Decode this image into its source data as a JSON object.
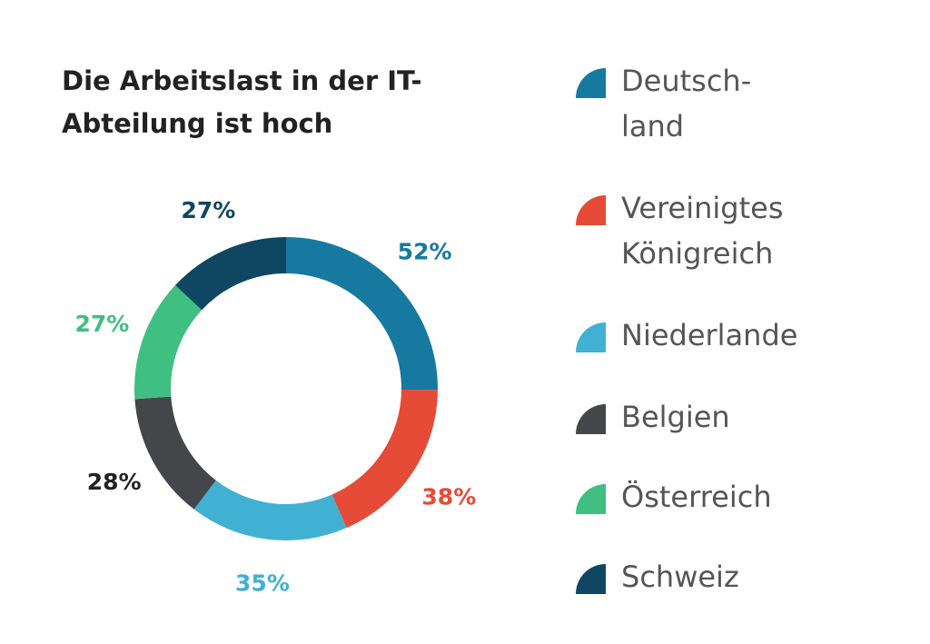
{
  "chart_data": {
    "type": "pie",
    "donut": true,
    "title": "Die Arbeitslast in der IT-Abteilung ist hoch",
    "categories": [
      "Deutsch-land",
      "Vereinigtes Königreich",
      "Niederlande",
      "Belgien",
      "Österreich",
      "Schweiz"
    ],
    "values": [
      52,
      38,
      35,
      28,
      27,
      27
    ],
    "data_labels": [
      "52%",
      "38%",
      "35%",
      "28%",
      "27%",
      "27%"
    ],
    "colors": [
      "#16799f",
      "#e54b36",
      "#40b1d2",
      "#454649",
      "#3fbf82",
      "#0f4662"
    ],
    "label_colors": [
      "#16799f",
      "#e54b36",
      "#40b1d2",
      "#222222",
      "#3fbf82",
      "#0f4662"
    ],
    "legend_position": "right"
  }
}
